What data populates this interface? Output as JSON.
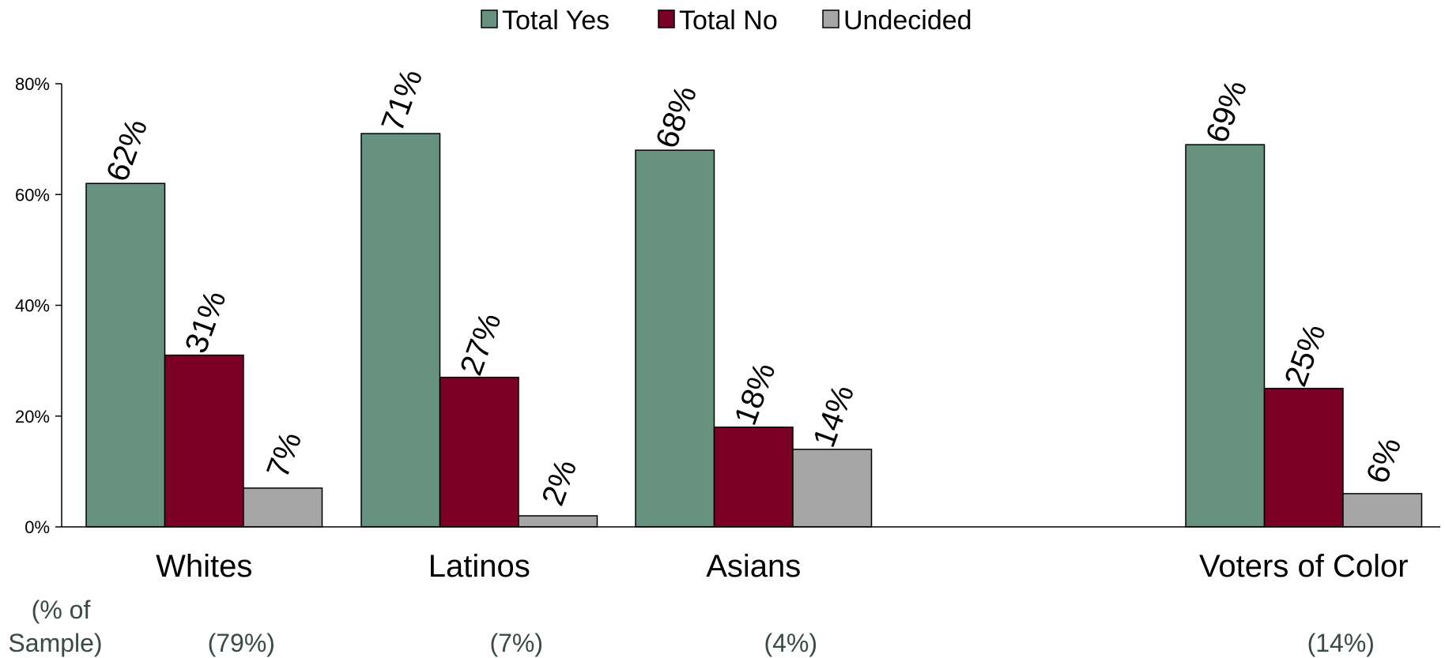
{
  "chart_data": {
    "type": "bar",
    "title": "",
    "xlabel": "",
    "ylabel": "",
    "ylim": [
      0,
      80
    ],
    "yticks": [
      "0%",
      "20%",
      "40%",
      "60%",
      "80%"
    ],
    "ytick_values": [
      0,
      20,
      40,
      60,
      80
    ],
    "legend_position": "top-center",
    "grid": false,
    "categories": [
      "Whites",
      "Latinos",
      "Asians",
      "Voters of Color"
    ],
    "sample_header": [
      "(% of",
      "Sample)"
    ],
    "sample_shares": [
      "(79%)",
      "(7%)",
      "(4%)",
      "(14%)"
    ],
    "series": [
      {
        "name": "Total Yes",
        "color": "#67927f",
        "values": [
          62,
          71,
          68,
          69
        ],
        "labels": [
          "62%",
          "71%",
          "68%",
          "69%"
        ]
      },
      {
        "name": "Total No",
        "color": "#7a0025",
        "values": [
          31,
          27,
          18,
          25
        ],
        "labels": [
          "31%",
          "27%",
          "18%",
          "25%"
        ]
      },
      {
        "name": "Undecided",
        "color": "#a6a6a6",
        "values": [
          7,
          2,
          14,
          6
        ],
        "labels": [
          "7%",
          "2%",
          "14%",
          "6%"
        ]
      }
    ]
  }
}
